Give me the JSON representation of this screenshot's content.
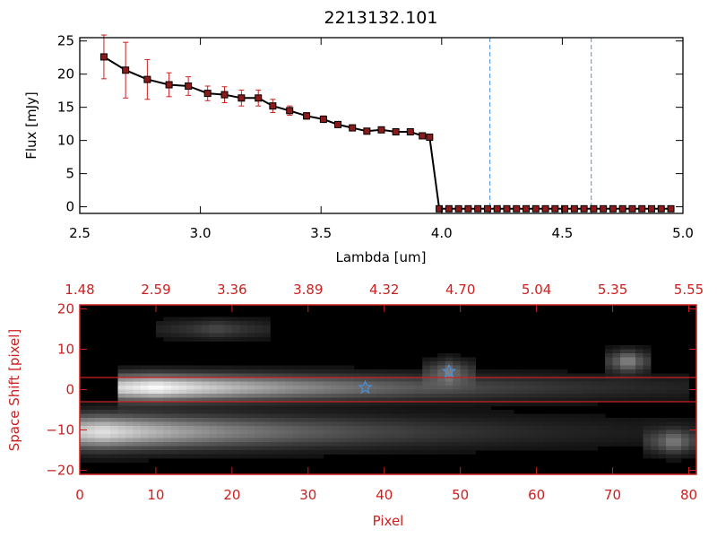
{
  "colors": {
    "axis_top": "#000000",
    "axis_bottom": "#cc2020",
    "error_bar": "#cc2020",
    "marker_fill": "#8b1a1a",
    "marker_edge": "#000000",
    "spectrum_line": "#000000",
    "vline": "#4a90d9",
    "star": "#4a90d9",
    "image_bg": "#000000"
  },
  "chart_data": [
    {
      "type": "line",
      "title": "2213132.101",
      "xlabel": "Lambda [um]",
      "ylabel": "Flux [mJy]",
      "xlim": [
        2.5,
        5.0
      ],
      "ylim": [
        -1,
        25.5
      ],
      "xticks": [
        2.5,
        3.0,
        3.5,
        4.0,
        4.5,
        5.0
      ],
      "xtick_labels": [
        "2.5",
        "3.0",
        "3.5",
        "4.0",
        "4.5",
        "5.0"
      ],
      "yticks": [
        0,
        5,
        10,
        15,
        20,
        25
      ],
      "ytick_labels": [
        "0",
        "5",
        "10",
        "15",
        "20",
        "25"
      ],
      "grid": false,
      "vertical_lines": [
        4.2,
        4.62
      ],
      "series": [
        {
          "x": [
            2.6,
            2.69,
            2.78,
            2.87,
            2.95,
            3.03,
            3.1,
            3.17,
            3.24,
            3.3,
            3.37,
            3.44,
            3.51,
            3.57,
            3.63,
            3.69,
            3.75,
            3.81,
            3.87,
            3.92,
            3.95,
            3.99,
            4.03,
            4.07,
            4.11,
            4.15,
            4.19,
            4.23,
            4.27,
            4.31,
            4.35,
            4.39,
            4.43,
            4.47,
            4.51,
            4.55,
            4.59,
            4.63,
            4.67,
            4.71,
            4.75,
            4.79,
            4.83,
            4.87,
            4.91,
            4.95
          ],
          "y": [
            22.6,
            20.6,
            19.2,
            18.4,
            18.2,
            17.1,
            16.9,
            16.4,
            16.4,
            15.2,
            14.5,
            13.7,
            13.2,
            12.4,
            11.9,
            11.4,
            11.6,
            11.3,
            11.3,
            10.7,
            10.5,
            -0.3,
            -0.3,
            -0.3,
            -0.3,
            -0.3,
            -0.3,
            -0.3,
            -0.3,
            -0.3,
            -0.3,
            -0.3,
            -0.3,
            -0.3,
            -0.3,
            -0.3,
            -0.3,
            -0.3,
            -0.3,
            -0.3,
            -0.3,
            -0.3,
            -0.3,
            -0.3,
            -0.3,
            -0.3
          ],
          "yerr": [
            3.3,
            4.2,
            3.0,
            1.8,
            1.4,
            1.1,
            1.2,
            1.2,
            1.2,
            1.0,
            0.7,
            0.5,
            0.5,
            0.4,
            0.4,
            0.3,
            0.3,
            0.3,
            0.3,
            0.3,
            0.3,
            0.1,
            0.1,
            0.1,
            0.1,
            0.1,
            0.1,
            0.1,
            0.1,
            0.1,
            0.1,
            0.1,
            0.1,
            0.1,
            0.1,
            0.1,
            0.1,
            0.1,
            0.1,
            0.1,
            0.1,
            0.1,
            0.1,
            0.1,
            0.1,
            0.1
          ]
        }
      ]
    },
    {
      "type": "heatmap",
      "xlabel": "Pixel",
      "ylabel": "Space Shift [pixel]",
      "xlim": [
        0,
        81
      ],
      "ylim": [
        -21,
        21
      ],
      "xticks": [
        0,
        10,
        20,
        30,
        40,
        50,
        60,
        70,
        80
      ],
      "xtick_labels": [
        "0",
        "10",
        "20",
        "30",
        "40",
        "50",
        "60",
        "70",
        "80"
      ],
      "yticks": [
        -20,
        -10,
        0,
        10,
        20
      ],
      "ytick_labels": [
        "−20",
        "−10",
        "0",
        "10",
        "20"
      ],
      "top_axis_positions": [
        0,
        10,
        20,
        30,
        40,
        50,
        60,
        70,
        80
      ],
      "top_axis_labels": [
        "1.48",
        "2.59",
        "3.36",
        "3.89",
        "4.32",
        "4.70",
        "5.04",
        "5.35",
        "5.55"
      ],
      "horizontal_lines": [
        3,
        -3
      ],
      "stars": [
        {
          "x": 37.5,
          "y": 0.5
        },
        {
          "x": 48.5,
          "y": 4.5
        }
      ],
      "sources": [
        {
          "x_start": 5,
          "x_end": 80,
          "y": 0.5,
          "width": 2.2,
          "peak": 0.95,
          "peak_x": 10,
          "falloff": 30
        },
        {
          "x_start": 0,
          "x_end": 81,
          "y": -10.5,
          "width": 2.8,
          "peak": 0.85,
          "peak_x": 3,
          "falloff": 28
        },
        {
          "x_start": 10,
          "x_end": 25,
          "y": 15,
          "width": 1.6,
          "peak": 0.25,
          "peak_x": 18,
          "falloff": 8
        },
        {
          "x_start": 45,
          "x_end": 52,
          "y": 4.5,
          "width": 2.0,
          "peak": 0.4,
          "peak_x": 48.5,
          "falloff": 3
        },
        {
          "x_start": 69,
          "x_end": 75,
          "y": 7,
          "width": 1.8,
          "peak": 0.55,
          "peak_x": 72,
          "falloff": 2.5
        },
        {
          "x_start": 74,
          "x_end": 81,
          "y": -13,
          "width": 2.0,
          "peak": 0.45,
          "peak_x": 78,
          "falloff": 3
        }
      ]
    }
  ]
}
